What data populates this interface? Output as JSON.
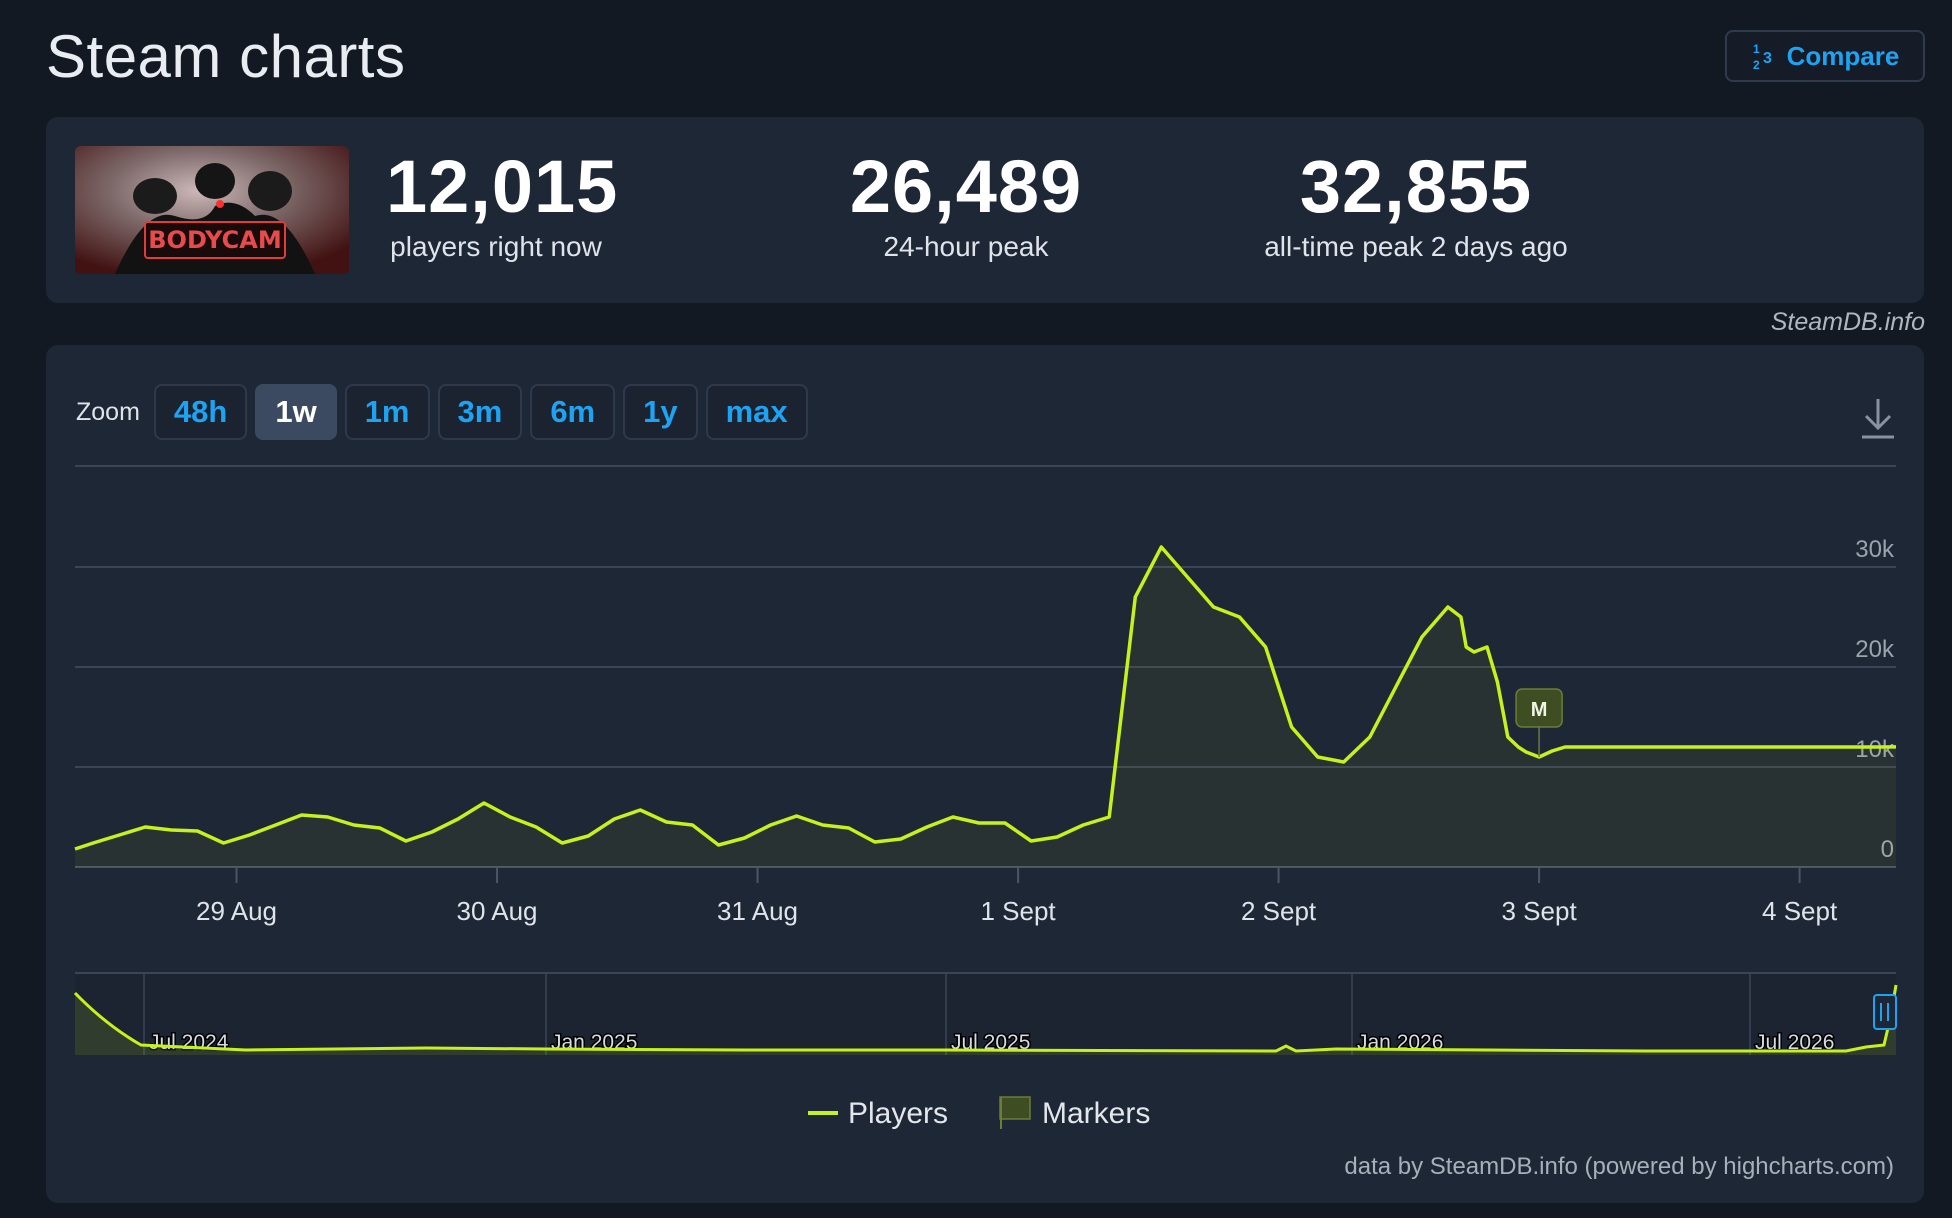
{
  "page": {
    "title": "Steam charts",
    "compare_label": "Compare",
    "compare_icon": "fraction-numbers-icon",
    "credit": "SteamDB.info"
  },
  "stats": [
    {
      "value": "12,015",
      "label": "players right now"
    },
    {
      "value": "26,489",
      "label": "24-hour peak"
    },
    {
      "value": "32,855",
      "label": "all-time peak 2 days ago"
    }
  ],
  "game": {
    "thumbnail_text": "BODYCAM"
  },
  "toolbar": {
    "zoom_label": "Zoom",
    "zoom_options": [
      "48h",
      "1w",
      "1m",
      "3m",
      "6m",
      "1y",
      "max"
    ],
    "active_zoom": "1w",
    "download_icon": "download-icon"
  },
  "colors": {
    "line": "#c6f11a",
    "background": "#1e2735",
    "accent": "#1ea3f3"
  },
  "chart_data": {
    "type": "line",
    "y_ticks": [
      "0",
      "10k",
      "20k",
      "30k"
    ],
    "ylim": [
      0,
      40000
    ],
    "x_ticks": [
      "29 Aug",
      "30 Aug",
      "31 Aug",
      "1 Sept",
      "2 Sept",
      "3 Sept",
      "4 Sept"
    ],
    "xlim": [
      -0.62,
      6.37
    ],
    "grid": true,
    "series": [
      {
        "name": "Players",
        "x": [
          -0.62,
          -0.55,
          -0.45,
          -0.35,
          -0.25,
          -0.15,
          -0.05,
          0.05,
          0.15,
          0.25,
          0.35,
          0.45,
          0.55,
          0.65,
          0.75,
          0.85,
          0.95,
          1.05,
          1.15,
          1.25,
          1.35,
          1.45,
          1.55,
          1.65,
          1.75,
          1.85,
          1.95,
          2.05,
          2.15,
          2.25,
          2.35,
          2.45,
          2.55,
          2.65,
          2.75,
          2.85,
          2.95,
          3.05,
          3.15,
          3.25,
          3.35,
          3.45,
          3.55,
          3.65,
          3.75,
          3.85,
          3.95,
          4.05,
          4.15,
          4.25,
          4.35,
          4.45,
          4.55,
          4.65,
          4.7,
          4.72,
          4.75,
          4.8,
          4.84,
          4.88,
          4.92,
          4.95,
          5.0,
          5.05,
          5.1,
          5.15,
          5.2,
          5.3,
          5.4,
          5.5,
          5.6,
          5.65,
          5.7,
          5.75,
          5.8,
          5.85,
          5.9,
          5.95,
          6.0,
          6.05,
          6.1,
          6.15,
          6.2,
          6.25,
          6.3,
          6.37
        ],
        "y": [
          1800,
          2400,
          3200,
          4000,
          3700,
          3600,
          2400,
          3200,
          4200,
          5200,
          5000,
          4200,
          3900,
          2600,
          3500,
          4800,
          6400,
          5000,
          4000,
          2400,
          3100,
          4800,
          5700,
          4500,
          4200,
          2200,
          2900,
          4200,
          5100,
          4200,
          3900,
          2500,
          2800,
          4000,
          5000,
          4400,
          4400,
          2600,
          3000,
          4200,
          5000,
          27000,
          32000,
          29000,
          26000,
          25000,
          22000,
          14000,
          11000,
          10500,
          13000,
          18000,
          23000,
          26000,
          25000,
          22000,
          21500,
          22000,
          18500,
          13000,
          12000,
          11500,
          11000,
          11600,
          12000,
          12000,
          12000,
          12000,
          12000,
          12000,
          12000,
          12000,
          12000,
          12000,
          12000,
          12000,
          12000,
          12000,
          12000,
          12000,
          12000,
          12000,
          12000,
          12000,
          12000,
          12015
        ]
      },
      {
        "name": "Markers",
        "label": "M",
        "x": 5.0
      }
    ],
    "navigator": {
      "labels": [
        "Jul 2024",
        "Jan 2025",
        "Jul 2025",
        "Jan 2026",
        "Jul 2026"
      ]
    },
    "legend": {
      "position": "bottom-center",
      "items": [
        "Players",
        "Markers"
      ]
    }
  },
  "footer": {
    "credit": "data by SteamDB.info (powered by highcharts.com)"
  }
}
